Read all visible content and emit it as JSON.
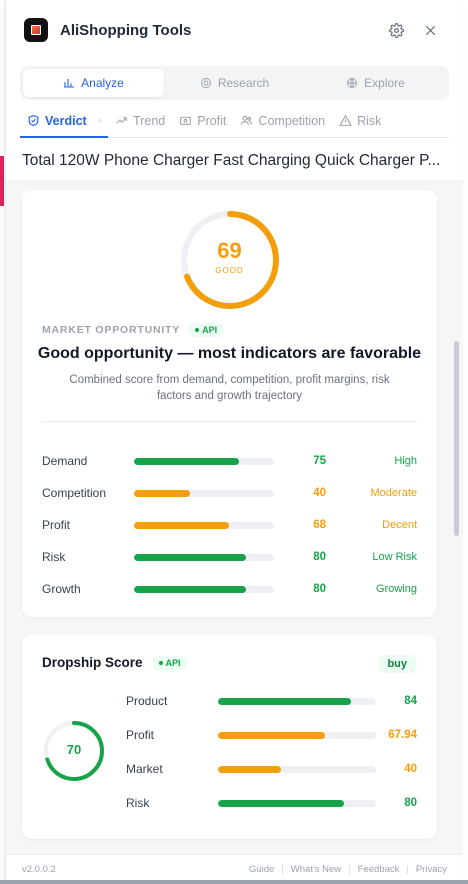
{
  "app": {
    "title": "AliShopping Tools"
  },
  "modes": [
    {
      "label": "Analyze",
      "icon": "bar-chart-icon",
      "active": true
    },
    {
      "label": "Research",
      "icon": "target-icon",
      "active": false
    },
    {
      "label": "Explore",
      "icon": "globe-icon",
      "active": false
    }
  ],
  "tabs": [
    {
      "label": "Verdict",
      "icon": "shield-check-icon",
      "active": true
    },
    {
      "label": "Trend",
      "icon": "trend-up-icon",
      "active": false
    },
    {
      "label": "Profit",
      "icon": "wallet-icon",
      "active": false
    },
    {
      "label": "Competition",
      "icon": "users-icon",
      "active": false
    },
    {
      "label": "Risk",
      "icon": "warning-icon",
      "active": false
    }
  ],
  "product": {
    "title": "Total 120W Phone Charger Fast Charging Quick Charger P..."
  },
  "verdict": {
    "score": 69,
    "score_label": "GOOD",
    "score_fraction": 0.69,
    "market_label": "MARKET OPPORTUNITY",
    "api_badge": "API",
    "headline": "Good opportunity — most indicators are favorable",
    "description": "Combined score from demand, competition, profit margins, risk factors and growth trajectory",
    "metrics": [
      {
        "name": "Demand",
        "value": 75,
        "tag": "High",
        "color": "#16a34a"
      },
      {
        "name": "Competition",
        "value": 40,
        "tag": "Moderate",
        "color": "#f59e0b"
      },
      {
        "name": "Profit",
        "value": 68,
        "tag": "Decent",
        "color": "#f59e0b"
      },
      {
        "name": "Risk",
        "value": 80,
        "tag": "Low Risk",
        "color": "#16a34a"
      },
      {
        "name": "Growth",
        "value": 80,
        "tag": "Growing",
        "color": "#16a34a"
      }
    ]
  },
  "dropship": {
    "title": "Dropship Score",
    "api_badge": "API",
    "badge": "buy",
    "score": 70,
    "score_fraction": 0.7,
    "metrics": [
      {
        "name": "Product",
        "value": "84",
        "fill": 84,
        "color": "#16a34a"
      },
      {
        "name": "Profit",
        "value": "67.94",
        "fill": 67.94,
        "color": "#f59e0b"
      },
      {
        "name": "Market",
        "value": "40",
        "fill": 40,
        "color": "#f59e0b"
      },
      {
        "name": "Risk",
        "value": "80",
        "fill": 80,
        "color": "#16a34a"
      }
    ]
  },
  "footer": {
    "version": "v2.0.0.2",
    "links": [
      "Guide",
      "What's New",
      "Feedback",
      "Privacy"
    ]
  },
  "colors": {
    "accent": "#2563eb",
    "good": "#16a34a",
    "warn": "#f59e0b"
  }
}
